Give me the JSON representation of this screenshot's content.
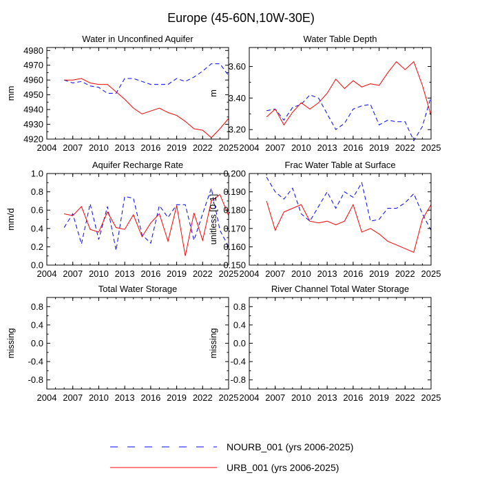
{
  "figure_title": "Europe (45-60N,10W-30E)",
  "colors": {
    "nourb": "#0000ff",
    "urb": "#ff0000",
    "axis": "#000000"
  },
  "legend": [
    {
      "label": "NOURB_001 (yrs 2006-2025)",
      "style": "dashed",
      "color": "#0000ff"
    },
    {
      "label": "URB_001 (yrs 2006-2025)",
      "style": "solid",
      "color": "#ff0000"
    }
  ],
  "chart_data": [
    {
      "type": "line",
      "title": "Water in Unconfined Aquifer",
      "ylabel": "mm",
      "xlim": [
        2004,
        2025
      ],
      "ylim": [
        4920,
        4982
      ],
      "xticks": [
        2004,
        2007,
        2010,
        2013,
        2016,
        2019,
        2022,
        2025
      ],
      "yticks": [
        4920,
        4930,
        4940,
        4950,
        4960,
        4970,
        4980
      ],
      "ytick_labels": [
        "4920",
        "4930",
        "4940",
        "4950",
        "4960",
        "4970",
        "4980"
      ],
      "x": [
        2006,
        2007,
        2008,
        2009,
        2010,
        2011,
        2012,
        2013,
        2014,
        2015,
        2016,
        2017,
        2018,
        2019,
        2020,
        2021,
        2022,
        2023,
        2024,
        2025
      ],
      "series": [
        {
          "name": "NOURB_001",
          "values": [
            4960,
            4958,
            4959,
            4956,
            4955,
            4951,
            4951,
            4961,
            4961,
            4959,
            4957,
            4957,
            4957,
            4961,
            4959,
            4962,
            4966,
            4971,
            4971,
            4963
          ]
        },
        {
          "name": "URB_001",
          "values": [
            4960,
            4960,
            4961,
            4958,
            4957,
            4957,
            4952,
            4947,
            4941,
            4937,
            4939,
            4941,
            4938,
            4936,
            4932,
            4927,
            4926,
            4921,
            4927,
            4934
          ]
        }
      ]
    },
    {
      "type": "line",
      "title": "Water Table Depth",
      "ylabel": "m",
      "xlim": [
        2004,
        2025
      ],
      "ylim": [
        3.14,
        3.72
      ],
      "xticks": [
        2004,
        2007,
        2010,
        2013,
        2016,
        2019,
        2022,
        2025
      ],
      "yticks": [
        3.2,
        3.4,
        3.6
      ],
      "ytick_labels": [
        "3.20",
        "3.40",
        "3.60"
      ],
      "x": [
        2006,
        2007,
        2008,
        2009,
        2010,
        2011,
        2012,
        2013,
        2014,
        2015,
        2016,
        2017,
        2018,
        2019,
        2020,
        2021,
        2022,
        2023,
        2024,
        2025
      ],
      "series": [
        {
          "name": "NOURB_001",
          "values": [
            3.32,
            3.33,
            3.26,
            3.34,
            3.36,
            3.42,
            3.4,
            3.3,
            3.2,
            3.24,
            3.33,
            3.35,
            3.36,
            3.23,
            3.26,
            3.25,
            3.25,
            3.13,
            3.22,
            3.41
          ]
        },
        {
          "name": "URB_001",
          "values": [
            3.28,
            3.33,
            3.23,
            3.31,
            3.37,
            3.33,
            3.37,
            3.43,
            3.52,
            3.46,
            3.51,
            3.47,
            3.49,
            3.48,
            3.56,
            3.63,
            3.58,
            3.63,
            3.48,
            3.29
          ]
        }
      ]
    },
    {
      "type": "line",
      "title": "Aquifer Recharge Rate",
      "ylabel": "mm/d",
      "xlim": [
        2004,
        2025
      ],
      "ylim": [
        0.0,
        1.0
      ],
      "xticks": [
        2004,
        2007,
        2010,
        2013,
        2016,
        2019,
        2022,
        2025
      ],
      "yticks": [
        0.0,
        0.2,
        0.4,
        0.6,
        0.8,
        1.0
      ],
      "ytick_labels": [
        "0.0",
        "0.2",
        "0.4",
        "0.6",
        "0.8",
        "1.0"
      ],
      "x": [
        2006,
        2007,
        2008,
        2009,
        2010,
        2011,
        2012,
        2013,
        2014,
        2015,
        2016,
        2017,
        2018,
        2019,
        2020,
        2021,
        2022,
        2023,
        2024,
        2025
      ],
      "series": [
        {
          "name": "NOURB_001",
          "values": [
            0.41,
            0.56,
            0.23,
            0.67,
            0.28,
            0.64,
            0.16,
            0.75,
            0.73,
            0.33,
            0.24,
            0.65,
            0.52,
            0.66,
            0.66,
            0.27,
            0.56,
            0.84,
            0.38,
            0.2
          ]
        },
        {
          "name": "URB_001",
          "values": [
            0.56,
            0.54,
            0.64,
            0.39,
            0.36,
            0.58,
            0.41,
            0.39,
            0.55,
            0.31,
            0.46,
            0.56,
            0.26,
            0.65,
            0.1,
            0.57,
            0.27,
            0.7,
            0.77,
            0.54
          ]
        }
      ]
    },
    {
      "type": "line",
      "title": "Frac Water Table at Surface",
      "ylabel": "unitless [0-1]",
      "xlim": [
        2004,
        2025
      ],
      "ylim": [
        0.15,
        0.2
      ],
      "xticks": [
        2004,
        2007,
        2010,
        2013,
        2016,
        2019,
        2022,
        2025
      ],
      "yticks": [
        0.15,
        0.16,
        0.17,
        0.18,
        0.19,
        0.2
      ],
      "ytick_labels": [
        "0.150",
        "0.160",
        "0.170",
        "0.180",
        "0.190",
        "0.200"
      ],
      "x": [
        2006,
        2007,
        2008,
        2009,
        2010,
        2011,
        2012,
        2013,
        2014,
        2015,
        2016,
        2017,
        2018,
        2019,
        2020,
        2021,
        2022,
        2023,
        2024,
        2025
      ],
      "series": [
        {
          "name": "NOURB_001",
          "values": [
            0.198,
            0.19,
            0.186,
            0.192,
            0.178,
            0.174,
            0.182,
            0.19,
            0.181,
            0.19,
            0.187,
            0.195,
            0.174,
            0.175,
            0.181,
            0.181,
            0.184,
            0.189,
            0.178,
            0.169
          ]
        },
        {
          "name": "URB_001",
          "values": [
            0.185,
            0.169,
            0.179,
            0.181,
            0.183,
            0.174,
            0.173,
            0.174,
            0.172,
            0.174,
            0.183,
            0.168,
            0.17,
            0.167,
            0.163,
            0.161,
            0.159,
            0.157,
            0.175,
            0.183
          ]
        }
      ]
    },
    {
      "type": "line",
      "title": "Total Water Storage",
      "ylabel": "missing",
      "xlim": [
        2004,
        2025
      ],
      "ylim": [
        -1.0,
        1.0
      ],
      "xticks": [
        2004,
        2007,
        2010,
        2013,
        2016,
        2019,
        2022,
        2025
      ],
      "yticks": [
        -0.8,
        -0.4,
        0.0,
        0.4,
        0.8
      ],
      "ytick_labels": [
        "-0.8",
        "-0.4",
        "0.0",
        "0.4",
        "0.8"
      ],
      "x": [],
      "series": []
    },
    {
      "type": "line",
      "title": "River Channel Total Water Storage",
      "ylabel": "missing",
      "xlim": [
        2004,
        2025
      ],
      "ylim": [
        -1.0,
        1.0
      ],
      "xticks": [
        2004,
        2007,
        2010,
        2013,
        2016,
        2019,
        2022,
        2025
      ],
      "yticks": [
        -0.8,
        -0.4,
        0.0,
        0.4,
        0.8
      ],
      "ytick_labels": [
        "-0.8",
        "-0.4",
        "0.0",
        "0.4",
        "0.8"
      ],
      "x": [],
      "series": []
    }
  ]
}
